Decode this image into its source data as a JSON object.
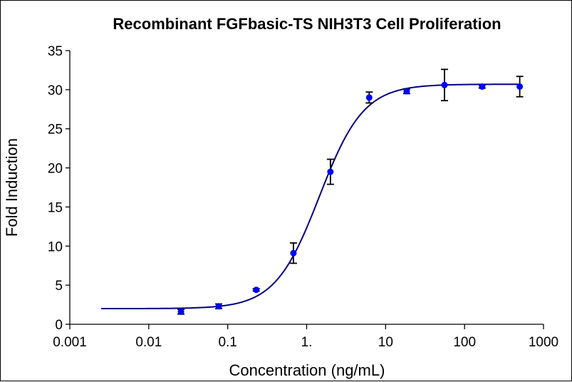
{
  "chart_data": {
    "type": "scatter",
    "title": "Recombinant FGFbasic-TS NIH3T3 Cell Proliferation",
    "xlabel": "Concentration (ng/mL)",
    "ylabel": "Fold Induction",
    "xscale": "log",
    "xlim": [
      0.001,
      1000
    ],
    "ylim": [
      0,
      35
    ],
    "grid": false,
    "legend": "none",
    "x_tick_labels": [
      "0.001",
      "0.01",
      "0.1",
      "1.",
      "10",
      "100",
      "1000"
    ],
    "x_tick_values": [
      0.001,
      0.01,
      0.1,
      1,
      10,
      100,
      1000
    ],
    "y_tick_labels": [
      "0",
      "5",
      "10",
      "15",
      "20",
      "25",
      "30",
      "35"
    ],
    "y_tick_values": [
      0,
      5,
      10,
      15,
      20,
      25,
      30,
      35
    ],
    "series": [
      {
        "name": "FGFbasic-TS",
        "color": "#0000ff",
        "points": [
          {
            "x": 0.0256,
            "y": 1.6,
            "err": 0.3
          },
          {
            "x": 0.077,
            "y": 2.3,
            "err": 0.3
          },
          {
            "x": 0.23,
            "y": 4.4,
            "err": 0.15
          },
          {
            "x": 0.68,
            "y": 9.1,
            "err": 1.3
          },
          {
            "x": 2.0,
            "y": 19.5,
            "err": 1.6
          },
          {
            "x": 6.2,
            "y": 29.0,
            "err": 0.7
          },
          {
            "x": 18.5,
            "y": 29.8,
            "err": 0.3
          },
          {
            "x": 55.7,
            "y": 30.6,
            "err": 2.0
          },
          {
            "x": 167,
            "y": 30.4,
            "err": 0.2
          },
          {
            "x": 500,
            "y": 30.4,
            "err": 1.3
          }
        ]
      }
    ],
    "fit": {
      "type": "four-parameter-logistic",
      "color": "#000080",
      "bottom": 2.0,
      "top": 30.7,
      "ec50": 1.45,
      "hill": 1.55,
      "x_range": [
        0.0025,
        500
      ]
    }
  }
}
